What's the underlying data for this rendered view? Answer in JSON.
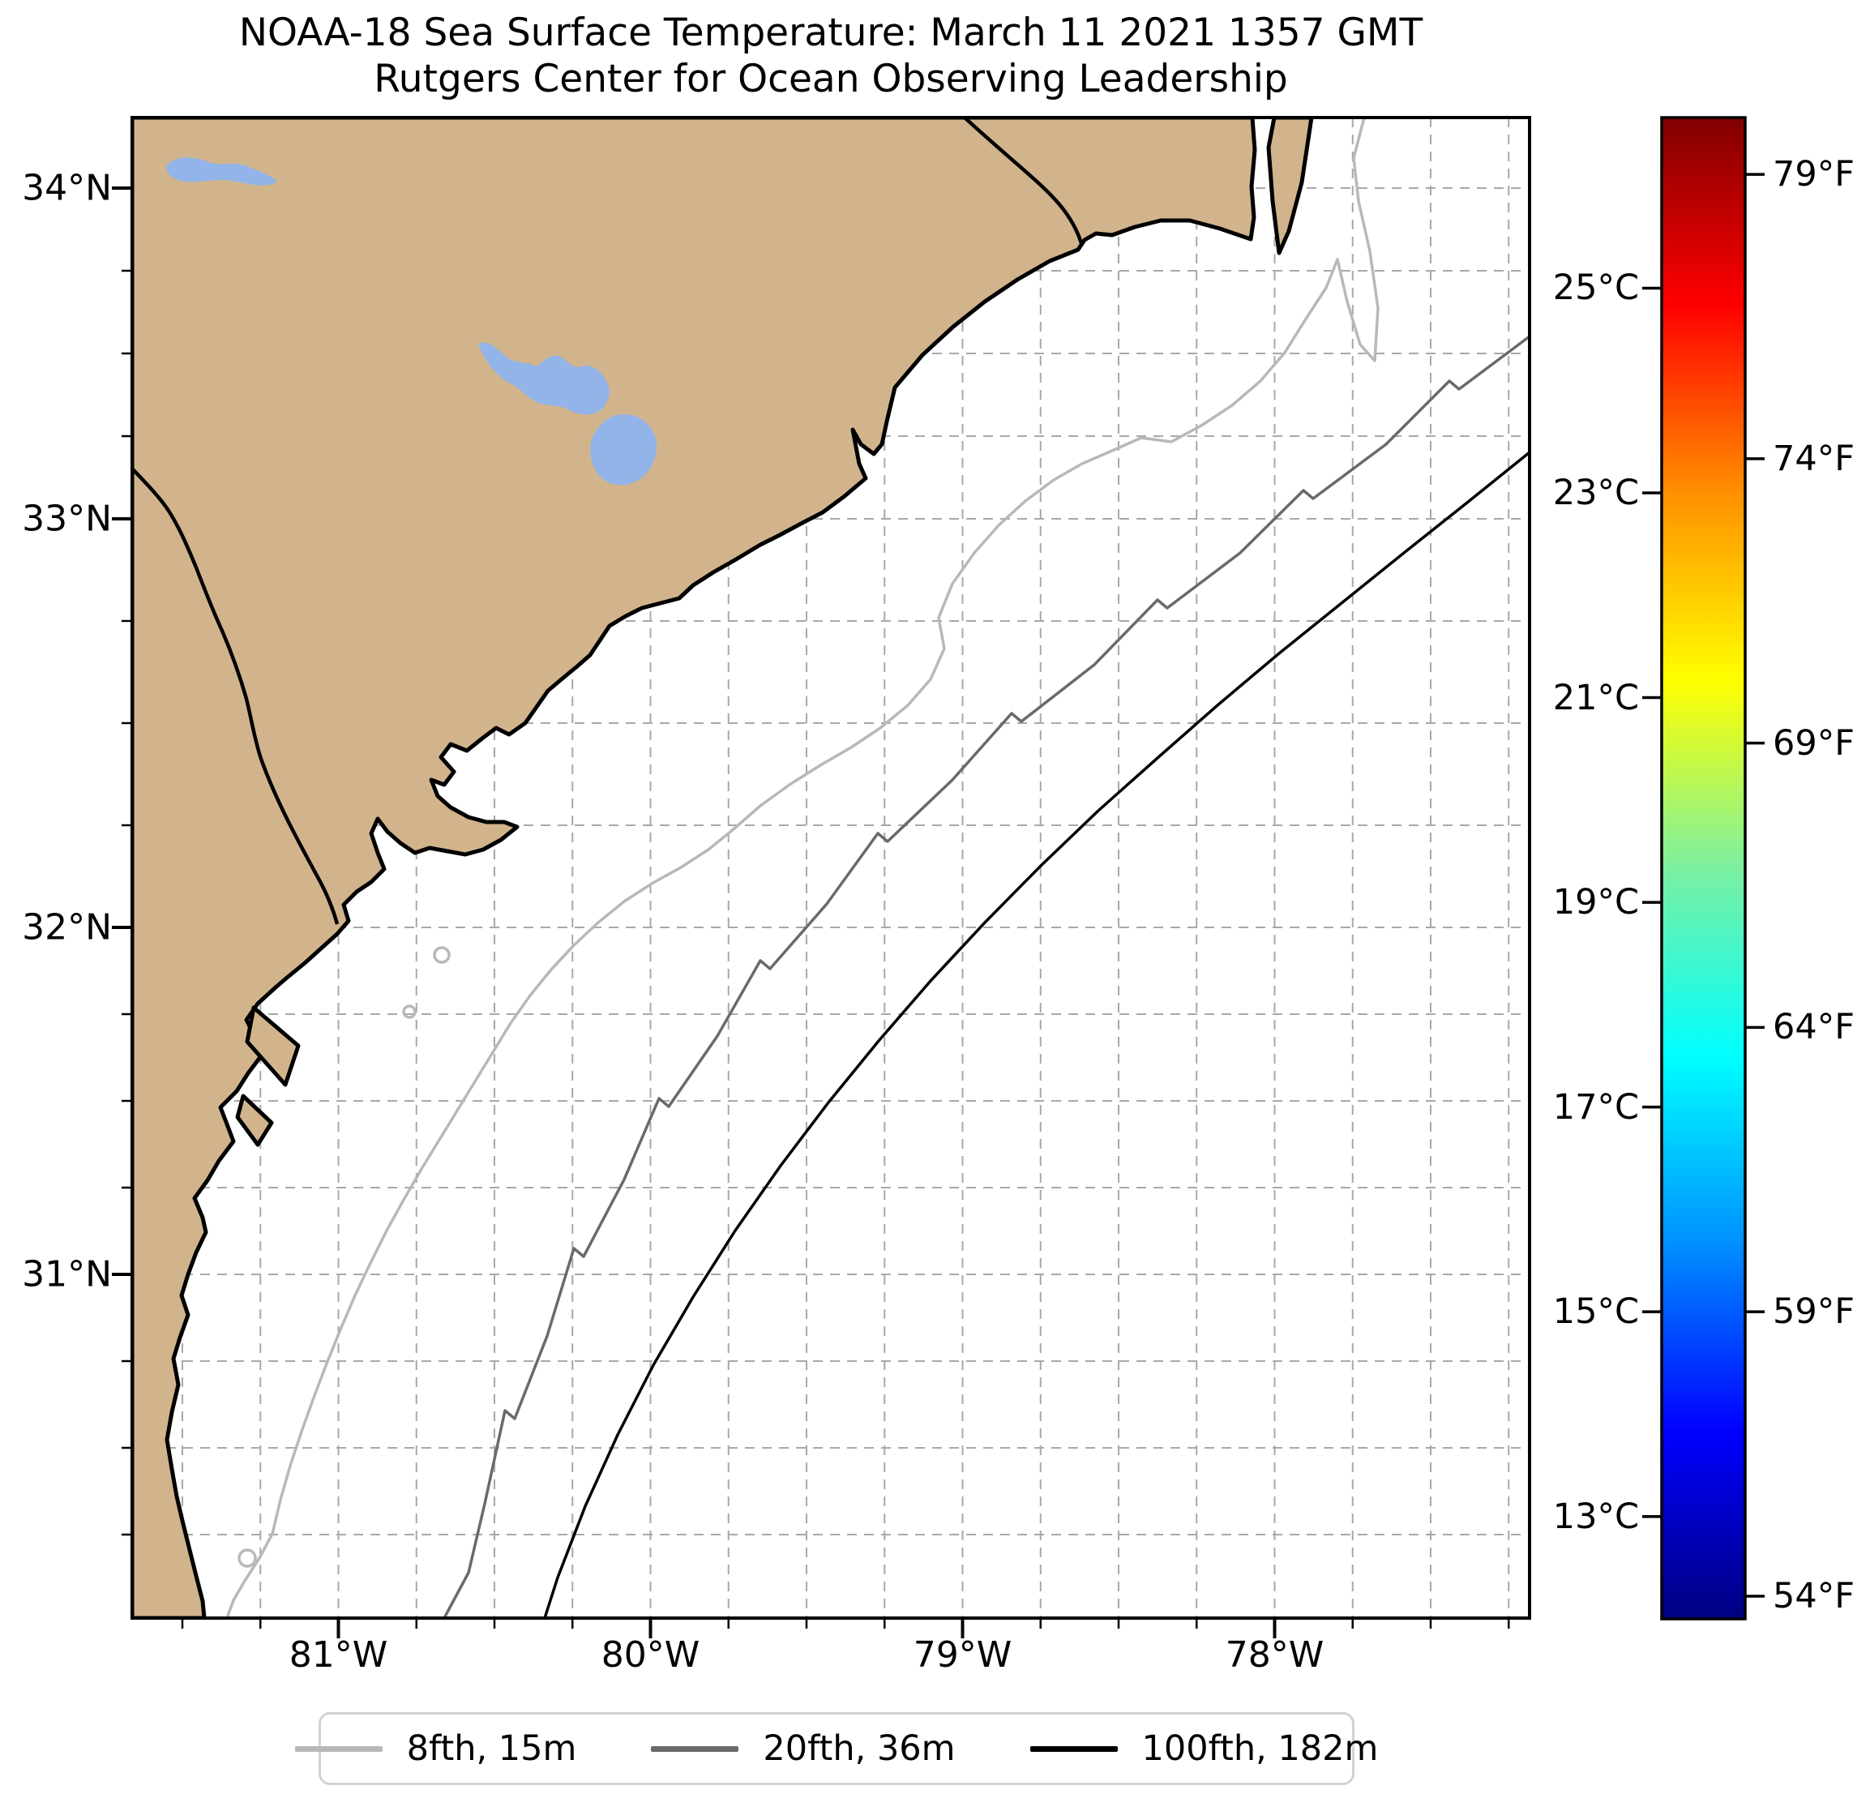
{
  "title": {
    "line1": "NOAA-18 Sea Surface Temperature: March 11 2021 1357 GMT",
    "line2": "Rutgers Center for Ocean Observing Leadership"
  },
  "map": {
    "lat_ticks": [
      {
        "label": "34°N"
      },
      {
        "label": "33°N"
      },
      {
        "label": "32°N"
      },
      {
        "label": "31°N"
      }
    ],
    "lon_ticks": [
      {
        "label": "81°W"
      },
      {
        "label": "80°W"
      },
      {
        "label": "79°W"
      },
      {
        "label": "78°W"
      }
    ],
    "land_color": "#d2b48c",
    "lake_color": "#92b4e8",
    "ocean_color": "#ffffff"
  },
  "colorbar": {
    "colormap": "jet",
    "celsius": [
      {
        "label": "25°C"
      },
      {
        "label": "23°C"
      },
      {
        "label": "21°C"
      },
      {
        "label": "19°C"
      },
      {
        "label": "17°C"
      },
      {
        "label": "15°C"
      },
      {
        "label": "13°C"
      }
    ],
    "fahrenheit": [
      {
        "label": "79°F"
      },
      {
        "label": "74°F"
      },
      {
        "label": "69°F"
      },
      {
        "label": "64°F"
      },
      {
        "label": "59°F"
      },
      {
        "label": "54°F"
      }
    ]
  },
  "legend": {
    "items": [
      {
        "label": "8fth, 15m",
        "color": "#b8b8b8"
      },
      {
        "label": "20fth, 36m",
        "color": "#6a6a6a"
      },
      {
        "label": "100fth, 182m",
        "color": "#000000"
      }
    ]
  },
  "chart_data": {
    "type": "map",
    "title": "NOAA-18 Sea Surface Temperature: March 11 2021 1357 GMT",
    "subtitle": "Rutgers Center for Ocean Observing Leadership",
    "region": "South Carolina / Georgia coast, western Atlantic",
    "lat_tick_values_deg_n": [
      34,
      33,
      32,
      31
    ],
    "lon_tick_values_deg_w": [
      81,
      80,
      79,
      78
    ],
    "graticule_spacing_deg": 0.25,
    "sst_pixels_visible": false,
    "colorbar": {
      "colormap": "jet",
      "range_celsius": [
        12.0,
        26.7
      ],
      "celsius_tick_values": [
        25,
        23,
        21,
        19,
        17,
        15,
        13
      ],
      "fahrenheit_tick_values": [
        79,
        74,
        69,
        64,
        59,
        54
      ]
    },
    "depth_contours": [
      {
        "label": "8fth, 15m",
        "fathoms": 8,
        "meters": 15,
        "color": "#b8b8b8"
      },
      {
        "label": "20fth, 36m",
        "fathoms": 20,
        "meters": 36,
        "color": "#6a6a6a"
      },
      {
        "label": "100fth, 182m",
        "fathoms": 100,
        "meters": 182,
        "color": "#000000"
      }
    ]
  }
}
